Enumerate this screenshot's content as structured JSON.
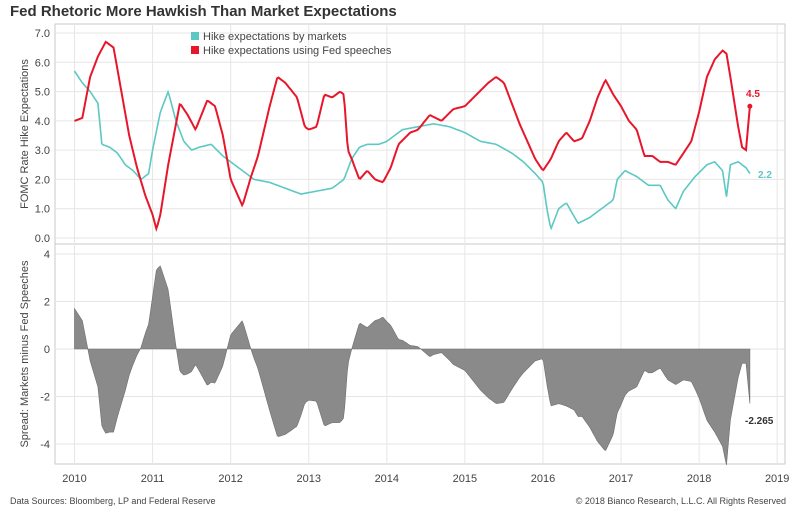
{
  "title": "Fed Rhetoric More Hawkish Than Market Expectations",
  "footer": {
    "sources": "Data Sources: Bloomberg, LP and Federal Reserve",
    "copyright": "© 2018 Bianco Research, L.L.C. All Rights Reserved"
  },
  "colors": {
    "markets": "#5cc8c4",
    "fed": "#e8162b",
    "spread": "#8a8a8a",
    "grid": "#e6e6e6"
  },
  "chart_data": [
    {
      "type": "line",
      "ylabel": "FOMC Rate Hike Expectations",
      "ylim": [
        0,
        7
      ],
      "yticks": [
        "0.0",
        "1.0",
        "2.0",
        "3.0",
        "4.0",
        "5.0",
        "6.0",
        "7.0"
      ],
      "legend": "top-center",
      "series": [
        {
          "name": "Hike expectations by markets",
          "end_label": "2.2",
          "points": [
            [
              2010.0,
              5.7
            ],
            [
              2010.1,
              5.3
            ],
            [
              2010.2,
              5.0
            ],
            [
              2010.3,
              4.6
            ],
            [
              2010.35,
              3.2
            ],
            [
              2010.45,
              3.1
            ],
            [
              2010.55,
              2.9
            ],
            [
              2010.65,
              2.5
            ],
            [
              2010.75,
              2.3
            ],
            [
              2010.85,
              2.0
            ],
            [
              2010.95,
              2.2
            ],
            [
              2011.0,
              3.0
            ],
            [
              2011.1,
              4.3
            ],
            [
              2011.2,
              5.0
            ],
            [
              2011.3,
              4.0
            ],
            [
              2011.4,
              3.3
            ],
            [
              2011.5,
              3.0
            ],
            [
              2011.6,
              3.1
            ],
            [
              2011.75,
              3.2
            ],
            [
              2011.9,
              2.8
            ],
            [
              2012.0,
              2.6
            ],
            [
              2012.15,
              2.3
            ],
            [
              2012.3,
              2.0
            ],
            [
              2012.5,
              1.9
            ],
            [
              2012.7,
              1.7
            ],
            [
              2012.9,
              1.5
            ],
            [
              2013.1,
              1.6
            ],
            [
              2013.3,
              1.7
            ],
            [
              2013.45,
              2.0
            ],
            [
              2013.55,
              2.7
            ],
            [
              2013.65,
              3.1
            ],
            [
              2013.75,
              3.2
            ],
            [
              2013.9,
              3.2
            ],
            [
              2014.0,
              3.3
            ],
            [
              2014.2,
              3.7
            ],
            [
              2014.4,
              3.8
            ],
            [
              2014.6,
              3.9
            ],
            [
              2014.8,
              3.8
            ],
            [
              2015.0,
              3.6
            ],
            [
              2015.2,
              3.3
            ],
            [
              2015.4,
              3.2
            ],
            [
              2015.6,
              2.9
            ],
            [
              2015.75,
              2.6
            ],
            [
              2015.9,
              2.2
            ],
            [
              2016.0,
              1.9
            ],
            [
              2016.05,
              1.0
            ],
            [
              2016.1,
              0.3
            ],
            [
              2016.2,
              1.0
            ],
            [
              2016.3,
              1.2
            ],
            [
              2016.45,
              0.5
            ],
            [
              2016.6,
              0.7
            ],
            [
              2016.75,
              1.0
            ],
            [
              2016.9,
              1.3
            ],
            [
              2016.95,
              2.0
            ],
            [
              2017.05,
              2.3
            ],
            [
              2017.2,
              2.1
            ],
            [
              2017.35,
              1.8
            ],
            [
              2017.5,
              1.8
            ],
            [
              2017.6,
              1.3
            ],
            [
              2017.7,
              1.0
            ],
            [
              2017.8,
              1.6
            ],
            [
              2017.95,
              2.1
            ],
            [
              2018.1,
              2.5
            ],
            [
              2018.2,
              2.6
            ],
            [
              2018.3,
              2.3
            ],
            [
              2018.35,
              1.4
            ],
            [
              2018.4,
              2.5
            ],
            [
              2018.5,
              2.6
            ],
            [
              2018.6,
              2.4
            ],
            [
              2018.65,
              2.2
            ]
          ]
        },
        {
          "name": "Hike expectations using Fed speeches",
          "end_label": "4.5",
          "points": [
            [
              2010.0,
              4.0
            ],
            [
              2010.1,
              4.1
            ],
            [
              2010.2,
              5.5
            ],
            [
              2010.3,
              6.2
            ],
            [
              2010.4,
              6.7
            ],
            [
              2010.5,
              6.5
            ],
            [
              2010.6,
              5.0
            ],
            [
              2010.7,
              3.5
            ],
            [
              2010.8,
              2.4
            ],
            [
              2010.9,
              1.5
            ],
            [
              2011.0,
              0.8
            ],
            [
              2011.05,
              0.3
            ],
            [
              2011.1,
              0.8
            ],
            [
              2011.2,
              2.5
            ],
            [
              2011.35,
              4.6
            ],
            [
              2011.45,
              4.2
            ],
            [
              2011.55,
              3.7
            ],
            [
              2011.7,
              4.7
            ],
            [
              2011.8,
              4.5
            ],
            [
              2011.9,
              3.5
            ],
            [
              2012.0,
              2.0
            ],
            [
              2012.1,
              1.4
            ],
            [
              2012.15,
              1.1
            ],
            [
              2012.25,
              2.0
            ],
            [
              2012.35,
              2.8
            ],
            [
              2012.5,
              4.5
            ],
            [
              2012.6,
              5.5
            ],
            [
              2012.7,
              5.3
            ],
            [
              2012.85,
              4.8
            ],
            [
              2012.95,
              3.8
            ],
            [
              2013.0,
              3.7
            ],
            [
              2013.1,
              3.8
            ],
            [
              2013.2,
              4.9
            ],
            [
              2013.3,
              4.8
            ],
            [
              2013.4,
              5.0
            ],
            [
              2013.45,
              4.9
            ],
            [
              2013.5,
              3.0
            ],
            [
              2013.55,
              2.7
            ],
            [
              2013.65,
              2.0
            ],
            [
              2013.75,
              2.3
            ],
            [
              2013.85,
              2.0
            ],
            [
              2013.95,
              1.9
            ],
            [
              2014.05,
              2.4
            ],
            [
              2014.15,
              3.2
            ],
            [
              2014.3,
              3.6
            ],
            [
              2014.4,
              3.7
            ],
            [
              2014.55,
              4.2
            ],
            [
              2014.7,
              4.0
            ],
            [
              2014.85,
              4.4
            ],
            [
              2015.0,
              4.5
            ],
            [
              2015.15,
              4.9
            ],
            [
              2015.3,
              5.3
            ],
            [
              2015.4,
              5.5
            ],
            [
              2015.5,
              5.3
            ],
            [
              2015.6,
              4.6
            ],
            [
              2015.7,
              3.9
            ],
            [
              2015.8,
              3.3
            ],
            [
              2015.9,
              2.7
            ],
            [
              2016.0,
              2.3
            ],
            [
              2016.1,
              2.7
            ],
            [
              2016.2,
              3.3
            ],
            [
              2016.3,
              3.6
            ],
            [
              2016.4,
              3.3
            ],
            [
              2016.5,
              3.4
            ],
            [
              2016.6,
              4.0
            ],
            [
              2016.7,
              4.8
            ],
            [
              2016.8,
              5.4
            ],
            [
              2016.9,
              4.9
            ],
            [
              2017.0,
              4.5
            ],
            [
              2017.1,
              4.0
            ],
            [
              2017.2,
              3.7
            ],
            [
              2017.3,
              2.8
            ],
            [
              2017.4,
              2.8
            ],
            [
              2017.5,
              2.6
            ],
            [
              2017.6,
              2.6
            ],
            [
              2017.7,
              2.5
            ],
            [
              2017.8,
              2.9
            ],
            [
              2017.9,
              3.3
            ],
            [
              2018.0,
              4.3
            ],
            [
              2018.1,
              5.5
            ],
            [
              2018.2,
              6.1
            ],
            [
              2018.3,
              6.4
            ],
            [
              2018.35,
              6.3
            ],
            [
              2018.4,
              5.5
            ],
            [
              2018.5,
              3.8
            ],
            [
              2018.55,
              3.1
            ],
            [
              2018.6,
              3.0
            ],
            [
              2018.65,
              4.5
            ]
          ]
        }
      ]
    },
    {
      "type": "area",
      "ylabel": "Spread: Markets minus Fed Speeches",
      "ylim": [
        -4.6,
        4.2
      ],
      "yticks": [
        "4",
        "2",
        "0",
        "-2",
        "-4"
      ],
      "end_label": "-2.265",
      "x_ticks": [
        "2010",
        "2011",
        "2012",
        "2013",
        "2014",
        "2015",
        "2016",
        "2017",
        "2018",
        "2019"
      ],
      "xlim": [
        2009.75,
        2019.1
      ]
    }
  ]
}
